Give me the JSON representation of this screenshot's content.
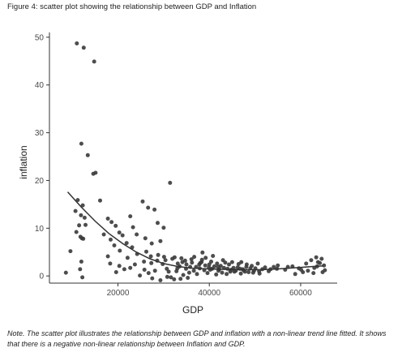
{
  "figure": {
    "caption": "Figure 4: scatter plot showing the relationship between GDP and Inflation",
    "note": "Note. The scatter plot illustrates the relationship between GDP and inflation with a non-linear trend line fitted. It shows that there is a negative non-linear relationship between Inflation and GDP."
  },
  "chart_data": {
    "type": "scatter",
    "xlabel": "GDP",
    "ylabel": "inflation",
    "xlim": [
      5000,
      68000
    ],
    "ylim": [
      -1.5,
      51
    ],
    "x_ticks": [
      20000,
      40000,
      60000
    ],
    "x_tick_labels": [
      "20000",
      "40000",
      "60000"
    ],
    "y_ticks": [
      0,
      10,
      20,
      30,
      40,
      50
    ],
    "y_tick_labels": [
      "0",
      "10",
      "20",
      "30",
      "40",
      "50"
    ],
    "grid": false,
    "point_color": "#3a3a3a",
    "line_color": "#333333",
    "points": [
      [
        11000,
        48.7
      ],
      [
        12500,
        47.8
      ],
      [
        14800,
        44.9
      ],
      [
        12000,
        27.7
      ],
      [
        13400,
        25.3
      ],
      [
        14600,
        21.4
      ],
      [
        15100,
        21.6
      ],
      [
        31400,
        19.5
      ],
      [
        11200,
        15.9
      ],
      [
        12300,
        14.8
      ],
      [
        10700,
        13.6
      ],
      [
        11900,
        12.7
      ],
      [
        12700,
        12.2
      ],
      [
        11500,
        10.6
      ],
      [
        12900,
        10.7
      ],
      [
        10900,
        9.2
      ],
      [
        11800,
        8.2
      ],
      [
        12100,
        7.9
      ],
      [
        12400,
        7.8
      ],
      [
        9600,
        5.2
      ],
      [
        12000,
        3.0
      ],
      [
        11700,
        1.4
      ],
      [
        8600,
        0.7
      ],
      [
        12200,
        -0.3
      ],
      [
        16100,
        15.8
      ],
      [
        17800,
        12.0
      ],
      [
        18600,
        11.3
      ],
      [
        19500,
        10.5
      ],
      [
        20300,
        9.1
      ],
      [
        21000,
        8.5
      ],
      [
        22700,
        12.5
      ],
      [
        23300,
        10.2
      ],
      [
        25400,
        15.6
      ],
      [
        26600,
        14.3
      ],
      [
        28000,
        13.9
      ],
      [
        28700,
        11.1
      ],
      [
        30000,
        10.1
      ],
      [
        24100,
        8.7
      ],
      [
        26000,
        7.9
      ],
      [
        27400,
        6.8
      ],
      [
        29300,
        7.3
      ],
      [
        16900,
        8.7
      ],
      [
        18400,
        7.6
      ],
      [
        19200,
        6.4
      ],
      [
        21900,
        6.9
      ],
      [
        23100,
        6.0
      ],
      [
        20400,
        5.3
      ],
      [
        17800,
        4.1
      ],
      [
        22100,
        3.8
      ],
      [
        24200,
        4.6
      ],
      [
        25700,
        3.0
      ],
      [
        27300,
        2.7
      ],
      [
        30400,
        3.3
      ],
      [
        18300,
        2.6
      ],
      [
        20300,
        2.1
      ],
      [
        22700,
        1.7
      ],
      [
        25800,
        1.3
      ],
      [
        28100,
        1.1
      ],
      [
        31100,
        0.9
      ],
      [
        33000,
        1.6
      ],
      [
        24800,
        0.1
      ],
      [
        27500,
        -0.5
      ],
      [
        29300,
        -0.9
      ],
      [
        31600,
        -0.3
      ],
      [
        33700,
        -0.6
      ],
      [
        26200,
        5.1
      ],
      [
        28800,
        4.4
      ],
      [
        30100,
        4.0
      ],
      [
        31900,
        3.6
      ],
      [
        33100,
        2.6
      ],
      [
        34700,
        3.2
      ],
      [
        35800,
        1.9
      ],
      [
        36600,
        1.1
      ],
      [
        37800,
        2.4
      ],
      [
        38500,
        4.9
      ],
      [
        39200,
        3.8
      ],
      [
        40400,
        3.0
      ],
      [
        41100,
        2.0
      ],
      [
        42200,
        1.4
      ],
      [
        43500,
        2.8
      ],
      [
        44600,
        0.9
      ],
      [
        45300,
        1.7
      ],
      [
        46400,
        2.5
      ],
      [
        47500,
        1.2
      ],
      [
        48600,
        0.8
      ],
      [
        49300,
        2.1
      ],
      [
        50100,
        1.6
      ],
      [
        51000,
        0.5
      ],
      [
        52200,
        1.8
      ],
      [
        53400,
        1.4
      ],
      [
        54100,
        1.9
      ],
      [
        55000,
        2.2
      ],
      [
        57200,
        1.9
      ],
      [
        58800,
        0.4
      ],
      [
        59600,
        1.6
      ],
      [
        60500,
        0.8
      ],
      [
        61200,
        2.6
      ],
      [
        62300,
        3.3
      ],
      [
        63000,
        1.7
      ],
      [
        63800,
        2.9
      ],
      [
        64600,
        3.6
      ],
      [
        65100,
        2.2
      ],
      [
        64800,
        0.8
      ],
      [
        63400,
        3.9
      ],
      [
        34300,
        0.2
      ],
      [
        36100,
        3.5
      ],
      [
        37300,
        0.4
      ],
      [
        38300,
        2.9
      ],
      [
        39900,
        1.8
      ],
      [
        40800,
        4.2
      ],
      [
        41700,
        2.6
      ],
      [
        43000,
        3.3
      ],
      [
        44000,
        1.5
      ],
      [
        45800,
        1.1
      ],
      [
        47000,
        2.9
      ],
      [
        48200,
        2.4
      ],
      [
        49800,
        1.1
      ],
      [
        50600,
        2.6
      ],
      [
        32400,
        3.9
      ],
      [
        35000,
        2.4
      ],
      [
        39600,
        0.6
      ],
      [
        42800,
        0.7
      ],
      [
        46900,
        0.5
      ],
      [
        35300,
        -0.4
      ],
      [
        38900,
        1.2
      ],
      [
        41500,
        0.3
      ],
      [
        44300,
        2.4
      ],
      [
        36700,
        4.0
      ],
      [
        37900,
        1.6
      ],
      [
        40200,
        1.3
      ],
      [
        42500,
        2.1
      ],
      [
        43800,
        0.4
      ],
      [
        45000,
        2.9
      ],
      [
        46200,
        1.8
      ],
      [
        47800,
        0.9
      ],
      [
        49000,
        1.6
      ],
      [
        50900,
        1.0
      ],
      [
        38400,
        3.4
      ],
      [
        34100,
        2.9
      ],
      [
        32800,
        1.0
      ],
      [
        33500,
        2.0
      ],
      [
        30700,
        1.5
      ],
      [
        29800,
        2.5
      ],
      [
        28600,
        3.2
      ],
      [
        27200,
        4.1
      ],
      [
        23700,
        2.4
      ],
      [
        21400,
        1.4
      ],
      [
        19600,
        0.8
      ],
      [
        26700,
        0.6
      ],
      [
        30800,
        -0.2
      ],
      [
        32300,
        -0.7
      ],
      [
        35600,
        0.7
      ],
      [
        38000,
        2.7
      ],
      [
        40600,
        1.5
      ],
      [
        43200,
        1.7
      ],
      [
        45500,
        0.9
      ],
      [
        48100,
        1.9
      ],
      [
        51600,
        1.4
      ],
      [
        53000,
        1.0
      ],
      [
        39100,
        2.2
      ],
      [
        41900,
        1.9
      ],
      [
        44800,
        1.3
      ],
      [
        47300,
        1.4
      ],
      [
        36200,
        2.8
      ],
      [
        37100,
        1.9
      ],
      [
        34900,
        1.5
      ],
      [
        33900,
        3.7
      ],
      [
        40000,
        2.4
      ],
      [
        42000,
        1.1
      ],
      [
        46700,
        1.5
      ],
      [
        49600,
        0.7
      ],
      [
        54800,
        1.5
      ],
      [
        56600,
        1.3
      ],
      [
        58200,
        2.0
      ],
      [
        61600,
        1.1
      ],
      [
        62800,
        0.6
      ],
      [
        63600,
        2.0
      ],
      [
        60100,
        1.3
      ],
      [
        65300,
        1.2
      ],
      [
        64200,
        2.7
      ]
    ],
    "trend": [
      [
        9000,
        17.6
      ],
      [
        12000,
        14.4
      ],
      [
        15000,
        11.5
      ],
      [
        18000,
        8.9
      ],
      [
        21000,
        6.8
      ],
      [
        24000,
        5.0
      ],
      [
        27000,
        3.6
      ],
      [
        30000,
        2.6
      ],
      [
        33000,
        2.0
      ],
      [
        36000,
        1.65
      ],
      [
        39000,
        1.5
      ],
      [
        42000,
        1.4
      ],
      [
        45000,
        1.35
      ],
      [
        48000,
        1.3
      ],
      [
        51000,
        1.3
      ],
      [
        54000,
        1.4
      ],
      [
        57000,
        1.6
      ],
      [
        60000,
        1.8
      ],
      [
        63000,
        2.0
      ],
      [
        65000,
        2.1
      ]
    ]
  }
}
